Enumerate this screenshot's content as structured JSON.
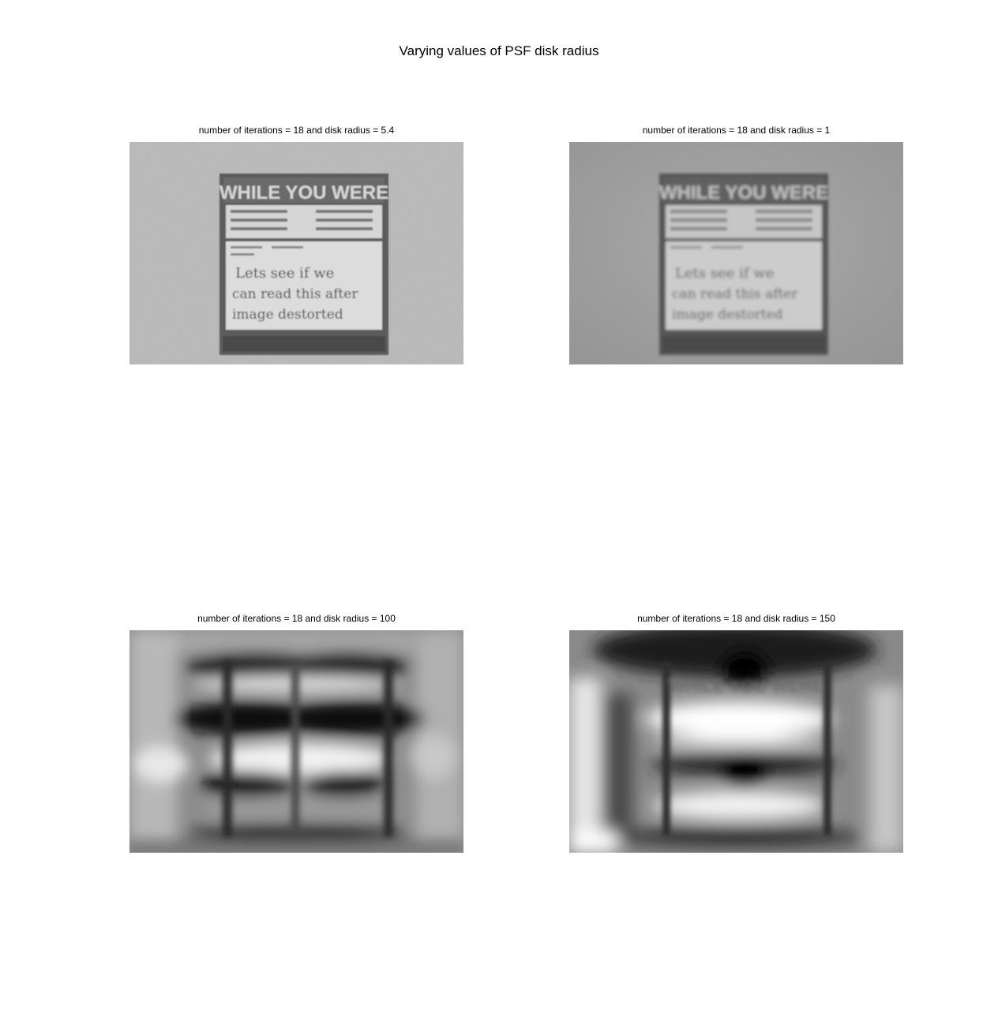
{
  "figure": {
    "title": "Varying values of PSF disk radius"
  },
  "panels": [
    {
      "title": "number of iterations = 18 and disk radius = 5.4",
      "sign_heading": "WHILE YOU WERE",
      "handwriting": [
        "Lets see if we",
        "can read this after",
        "image destorted"
      ]
    },
    {
      "title": "number of iterations = 18 and disk radius = 1",
      "sign_heading": "WHILE YOU WERE",
      "handwriting": [
        "Lets see if we",
        "can read this after",
        "image destorted"
      ]
    },
    {
      "title": "number of iterations = 18 and disk radius = 100"
    },
    {
      "title": "number of iterations = 18 and disk radius = 150",
      "sign_heading": "WHILE YOU WERE"
    }
  ]
}
